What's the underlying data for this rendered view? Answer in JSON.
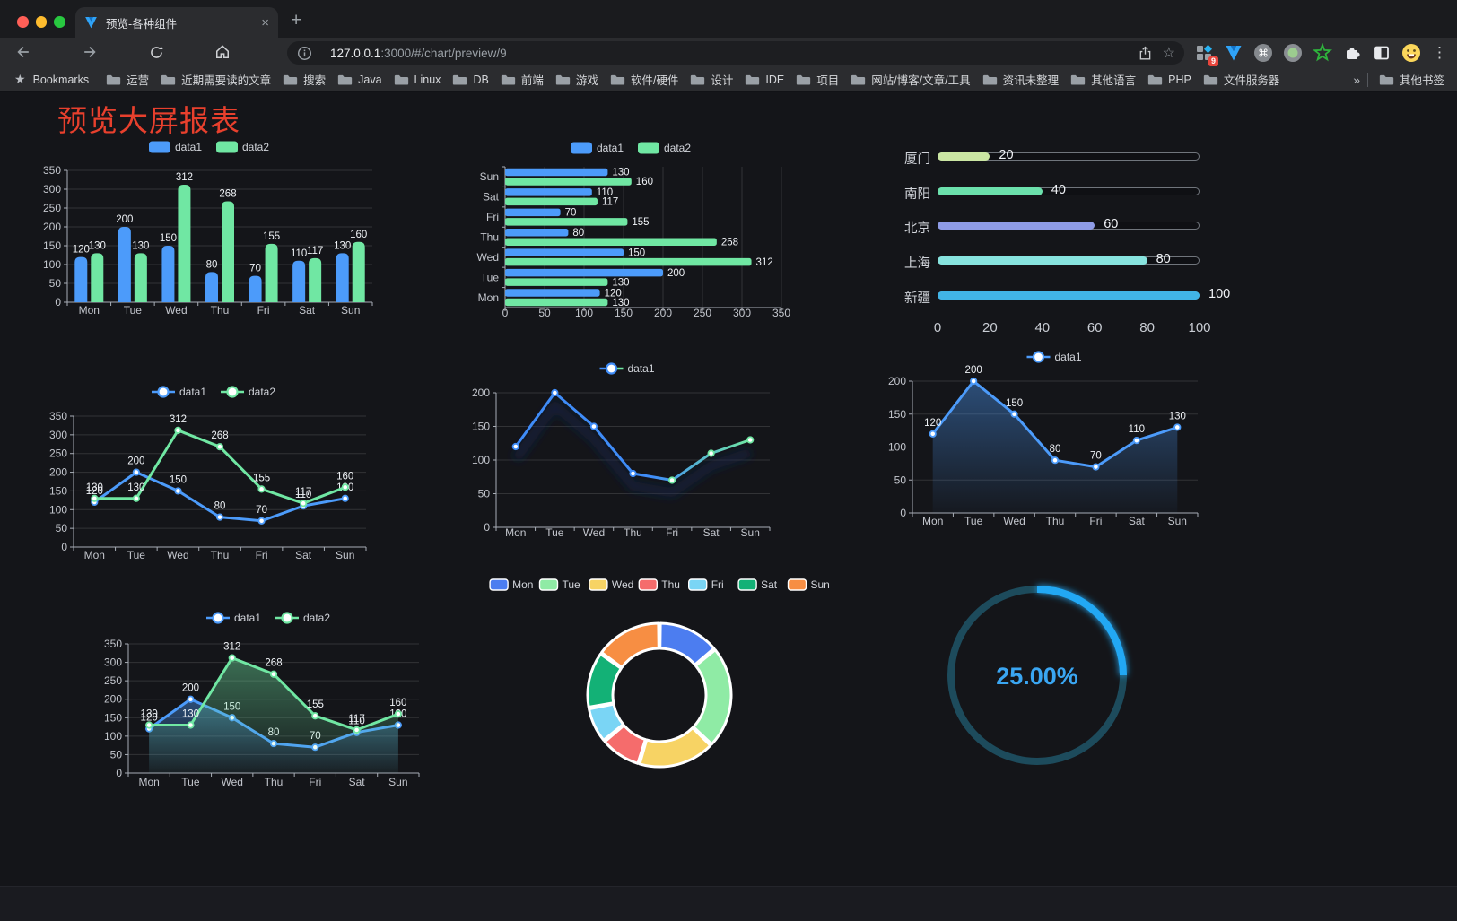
{
  "browser": {
    "tab_title": "预览-各种组件",
    "url_host": "127.0.0.1",
    "url_rest": ":3000/#/chart/preview/9",
    "bookmarks_label": "Bookmarks",
    "bookmark_folders": [
      "运营",
      "近期需要读的文章",
      "搜索",
      "Java",
      "Linux",
      "DB",
      "前端",
      "游戏",
      "软件/硬件",
      "设计",
      "IDE",
      "项目",
      "网站/博客/文章/工具",
      "资讯未整理",
      "其他语言",
      "PHP",
      "文件服务器"
    ],
    "bookmarks_overflow": "»",
    "other_bookmarks": "其他书签",
    "extensions_badge": "9"
  },
  "page": {
    "title": "预览大屏报表",
    "title_color": "#e8402d"
  },
  "chart_data": [
    {
      "id": "bar-vertical",
      "type": "bar",
      "categories": [
        "Mon",
        "Tue",
        "Wed",
        "Thu",
        "Fri",
        "Sat",
        "Sun"
      ],
      "series": [
        {
          "name": "data1",
          "color": "#4c9bfa",
          "values": [
            120,
            200,
            150,
            80,
            70,
            110,
            130
          ]
        },
        {
          "name": "data2",
          "color": "#70e7a3",
          "values": [
            130,
            130,
            312,
            268,
            155,
            117,
            160
          ]
        }
      ],
      "ylim": [
        0,
        350
      ],
      "ystep": 50,
      "legend_position": "top",
      "grid": true,
      "value_labels": true
    },
    {
      "id": "bar-horizontal",
      "type": "bar-horizontal",
      "categories": [
        "Mon",
        "Tue",
        "Wed",
        "Thu",
        "Fri",
        "Sat",
        "Sun"
      ],
      "series": [
        {
          "name": "data1",
          "color": "#4c9bfa",
          "values": [
            120,
            200,
            150,
            80,
            70,
            110,
            130
          ]
        },
        {
          "name": "data2",
          "color": "#70e7a3",
          "values": [
            130,
            130,
            312,
            268,
            155,
            117,
            160
          ]
        }
      ],
      "xlim": [
        0,
        350
      ],
      "xstep": 50,
      "legend_position": "top",
      "grid": true,
      "value_labels": true
    },
    {
      "id": "progress-bars",
      "type": "bar-progress",
      "categories": [
        "厦门",
        "南阳",
        "北京",
        "上海",
        "新疆"
      ],
      "values": [
        20,
        40,
        60,
        80,
        100
      ],
      "colors": [
        "#cbe6a3",
        "#6ce0ac",
        "#8e9be6",
        "#87e3de",
        "#41b4e6"
      ],
      "xlim": [
        0,
        100
      ],
      "xticks": [
        0,
        20,
        40,
        60,
        80,
        100
      ],
      "value_labels": true
    },
    {
      "id": "line-dual",
      "type": "line",
      "categories": [
        "Mon",
        "Tue",
        "Wed",
        "Thu",
        "Fri",
        "Sat",
        "Sun"
      ],
      "series": [
        {
          "name": "data1",
          "color": "#4c9bfa",
          "values": [
            120,
            200,
            150,
            80,
            70,
            110,
            130
          ],
          "value_labels": true
        },
        {
          "name": "data2",
          "color": "#70e7a3",
          "values": [
            130,
            130,
            312,
            268,
            155,
            117,
            160
          ],
          "value_labels": true
        }
      ],
      "ylim": [
        0,
        350
      ],
      "ystep": 50,
      "legend_position": "top",
      "grid": true
    },
    {
      "id": "line-gradient",
      "type": "line",
      "categories": [
        "Mon",
        "Tue",
        "Wed",
        "Thu",
        "Fri",
        "Sat",
        "Sun"
      ],
      "series": [
        {
          "name": "data1",
          "color": "#3f8cf8",
          "color_end": "#6fe7a2",
          "gradient": true,
          "values": [
            120,
            200,
            150,
            80,
            70,
            110,
            130
          ],
          "value_labels": false
        }
      ],
      "ylim": [
        0,
        200
      ],
      "ystep": 50,
      "legend_position": "top",
      "grid": true
    },
    {
      "id": "line-area",
      "type": "line",
      "categories": [
        "Mon",
        "Tue",
        "Wed",
        "Thu",
        "Fri",
        "Sat",
        "Sun"
      ],
      "series": [
        {
          "name": "data1",
          "color": "#4c9bfa",
          "area": true,
          "values": [
            120,
            200,
            150,
            80,
            70,
            110,
            130
          ],
          "value_labels": true
        }
      ],
      "ylim": [
        0,
        200
      ],
      "ystep": 50,
      "legend_position": "top",
      "grid": true
    },
    {
      "id": "area-dual",
      "type": "line",
      "categories": [
        "Mon",
        "Tue",
        "Wed",
        "Thu",
        "Fri",
        "Sat",
        "Sun"
      ],
      "series": [
        {
          "name": "data1",
          "color": "#4c9bfa",
          "area": true,
          "values": [
            120,
            200,
            150,
            80,
            70,
            110,
            130
          ],
          "value_labels": true
        },
        {
          "name": "data2",
          "color": "#70e7a3",
          "area": true,
          "values": [
            130,
            130,
            312,
            268,
            155,
            117,
            160
          ],
          "value_labels": true
        }
      ],
      "ylim": [
        0,
        350
      ],
      "ystep": 50,
      "legend_position": "top",
      "grid": true
    },
    {
      "id": "donut",
      "type": "pie",
      "categories": [
        "Mon",
        "Tue",
        "Wed",
        "Thu",
        "Fri",
        "Sat",
        "Sun"
      ],
      "values": [
        120,
        200,
        150,
        80,
        70,
        110,
        130
      ],
      "colors": [
        "#4c7df0",
        "#8feba5",
        "#f7d364",
        "#f56c6c",
        "#7ad5f5",
        "#13b176",
        "#f78e43"
      ],
      "inner_radius_ratio": 0.65,
      "legend_position": "top",
      "border_color": "#ffffff"
    },
    {
      "id": "gauge",
      "type": "gauge",
      "value_percent": 25,
      "label": "25.00%",
      "progress_color": "#20a8f4",
      "track_color": "#1d4b5c",
      "text_color": "#3aa6f2"
    }
  ]
}
